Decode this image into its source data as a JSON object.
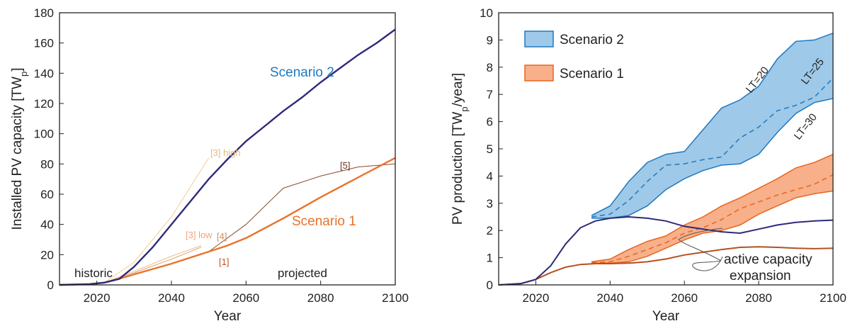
{
  "chart_data": [
    {
      "type": "line",
      "xlabel": "Year",
      "ylabel_main": "Installed PV capacity [TW",
      "ylabel_sub": "p",
      "ylabel_end": "]",
      "xlim": [
        2010,
        2100
      ],
      "ylim": [
        0,
        180
      ],
      "x_ticks": [
        "2020",
        "2040",
        "2060",
        "2080",
        "2100"
      ],
      "y_ticks": [
        "0",
        "20",
        "40",
        "60",
        "80",
        "100",
        "120",
        "140",
        "160",
        "180"
      ],
      "colors": {
        "scenario2": "#2e2a7a",
        "scenario1": "#e8732a",
        "high3": "#f2cf96",
        "low3": "#f5b58a",
        "ref4": "#d9a069",
        "ref5": "#8a4a2a",
        "ref1": "#c0502a"
      },
      "series": [
        {
          "name": "Scenario 2",
          "x": [
            2010,
            2018,
            2022,
            2026,
            2030,
            2035,
            2040,
            2045,
            2050,
            2055,
            2060,
            2065,
            2070,
            2075,
            2080,
            2085,
            2090,
            2095,
            2100
          ],
          "y": [
            0,
            0.5,
            1.5,
            4,
            12,
            25,
            40,
            55,
            70,
            83,
            95,
            105,
            115,
            124,
            134,
            143,
            152,
            160,
            169
          ]
        },
        {
          "name": "Scenario 1",
          "x": [
            2010,
            2018,
            2022,
            2026,
            2030,
            2035,
            2040,
            2045,
            2050,
            2055,
            2060,
            2070,
            2080,
            2090,
            2100
          ],
          "y": [
            0,
            0.5,
            1.5,
            4,
            7,
            10.5,
            14,
            18,
            22,
            26,
            31,
            44,
            58,
            71,
            84
          ]
        },
        {
          "name": "[3] high",
          "x": [
            2022,
            2030,
            2040,
            2050
          ],
          "y": [
            1.5,
            15,
            45,
            84
          ]
        },
        {
          "name": "[3] low",
          "x": [
            2022,
            2030,
            2040,
            2048
          ],
          "y": [
            1.5,
            9,
            19,
            26
          ]
        },
        {
          "name": "[4]",
          "x": [
            2022,
            2030,
            2040,
            2048
          ],
          "y": [
            1.5,
            8,
            17,
            25
          ]
        },
        {
          "name": "[5]",
          "x": [
            2022,
            2030,
            2040,
            2050,
            2060,
            2070,
            2080,
            2090,
            2100
          ],
          "y": [
            1.5,
            7,
            14,
            22,
            40,
            64,
            72,
            78,
            80
          ]
        }
      ],
      "annotations": {
        "scenario2": "Scenario 2",
        "scenario1": "Scenario 1",
        "high3": "[3] high",
        "low3": "[3] low",
        "ref4": "[4]",
        "ref5": "[5]",
        "ref1": "[1]",
        "historic": "historic",
        "projected": "projected"
      }
    },
    {
      "type": "area",
      "xlabel": "Year",
      "ylabel_main": "PV production  [TW",
      "ylabel_sub": "p",
      "ylabel_end": "/year]",
      "xlim": [
        2010,
        2100
      ],
      "ylim": [
        0,
        10
      ],
      "x_ticks": [
        "2020",
        "2040",
        "2060",
        "2080",
        "2100"
      ],
      "y_ticks": [
        "0",
        "1",
        "2",
        "3",
        "4",
        "5",
        "6",
        "7",
        "8",
        "9",
        "10"
      ],
      "legend": {
        "placement": "top-left",
        "items": [
          "Scenario 2",
          "Scenario 1"
        ]
      },
      "colors": {
        "s2_fill": "#9ec9e8",
        "s2_line": "#1f78c0",
        "s1_fill": "#f7b08a",
        "s1_line": "#e8651f",
        "active2": "#2e2a7a",
        "active1": "#b5511f"
      },
      "series": [
        {
          "name": "Scenario 2",
          "x": [
            2035,
            2040,
            2045,
            2050,
            2055,
            2060,
            2065,
            2070,
            2075,
            2080,
            2085,
            2090,
            2095,
            2100
          ],
          "upper": [
            2.55,
            2.9,
            3.8,
            4.5,
            4.8,
            4.9,
            5.7,
            6.5,
            6.8,
            7.3,
            8.3,
            8.95,
            9.0,
            9.25
          ],
          "mid": [
            2.5,
            2.6,
            3.1,
            3.8,
            4.4,
            4.45,
            4.6,
            4.7,
            5.4,
            5.8,
            6.4,
            6.6,
            6.9,
            7.6
          ],
          "lower": [
            2.45,
            2.45,
            2.55,
            2.9,
            3.5,
            3.9,
            4.2,
            4.4,
            4.45,
            4.8,
            5.6,
            6.3,
            6.7,
            6.85
          ]
        },
        {
          "name": "Scenario 1",
          "x": [
            2035,
            2040,
            2045,
            2050,
            2055,
            2060,
            2065,
            2070,
            2075,
            2080,
            2085,
            2090,
            2095,
            2100
          ],
          "upper": [
            0.85,
            0.95,
            1.3,
            1.6,
            1.8,
            2.2,
            2.5,
            2.9,
            3.2,
            3.55,
            3.9,
            4.3,
            4.5,
            4.8
          ],
          "mid": [
            0.82,
            0.85,
            1.05,
            1.3,
            1.55,
            1.9,
            2.1,
            2.4,
            2.8,
            3.05,
            3.3,
            3.5,
            3.7,
            4.05
          ],
          "lower": [
            0.8,
            0.8,
            0.85,
            1.05,
            1.35,
            1.65,
            1.9,
            2.0,
            2.2,
            2.6,
            2.9,
            3.2,
            3.35,
            3.45
          ]
        },
        {
          "name": "Scenario 2 active",
          "x": [
            2010,
            2016,
            2020,
            2024,
            2028,
            2032,
            2036,
            2040,
            2045,
            2050,
            2055,
            2060,
            2065,
            2070,
            2075,
            2080,
            2085,
            2090,
            2095,
            2100
          ],
          "y": [
            0,
            0.05,
            0.2,
            0.7,
            1.5,
            2.1,
            2.35,
            2.45,
            2.5,
            2.45,
            2.35,
            2.15,
            2.05,
            1.95,
            1.9,
            2.05,
            2.2,
            2.3,
            2.35,
            2.38
          ]
        },
        {
          "name": "Scenario 1 active",
          "x": [
            2010,
            2016,
            2020,
            2024,
            2028,
            2032,
            2036,
            2040,
            2045,
            2050,
            2055,
            2060,
            2065,
            2070,
            2075,
            2080,
            2085,
            2090,
            2095,
            2100
          ],
          "y": [
            0,
            0.05,
            0.2,
            0.45,
            0.65,
            0.75,
            0.78,
            0.78,
            0.8,
            0.85,
            0.95,
            1.1,
            1.2,
            1.3,
            1.38,
            1.4,
            1.38,
            1.35,
            1.33,
            1.35
          ]
        }
      ],
      "annotations": {
        "lt20": "LT=20",
        "lt25": "LT=25",
        "lt30": "LT=30",
        "active1": "active capacity",
        "active2": "expansion"
      }
    }
  ]
}
